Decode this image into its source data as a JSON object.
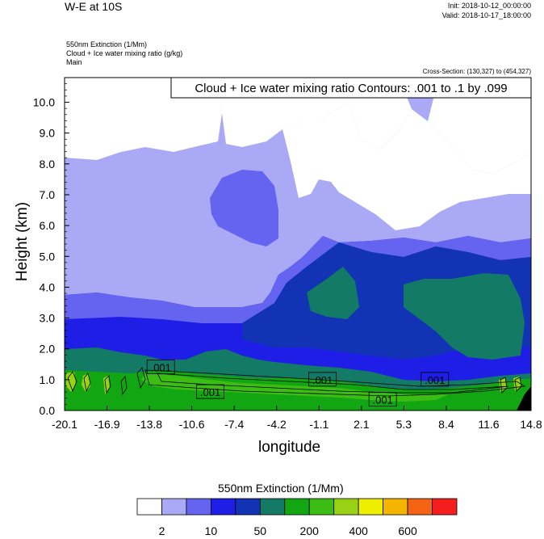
{
  "header": {
    "title": "W-E at 10S",
    "init": "Init: 2018-10-12_00:00:00",
    "valid": "Valid: 2018-10-17_18:00:00",
    "subtitle_lines": [
      "550nm Extinction   (1/Mm)",
      "Cloud + Ice water mixing ratio   (g/kg)",
      "Main"
    ],
    "cross_section": "Cross-Section: (130,327) to (454,327)"
  },
  "chart_data": {
    "type": "heatmap",
    "title": "",
    "contour_label": "Cloud + Ice water mixing ratio Contours: .001 to .1 by .099",
    "xlabel": "longitude",
    "ylabel": "Height (km)",
    "x_ticks": [
      "-20.1",
      "-16.9",
      "-13.8",
      "-10.6",
      "-7.4",
      "-4.2",
      "-1.1",
      "2.1",
      "5.3",
      "8.4",
      "11.6",
      "14.8"
    ],
    "y_ticks": [
      "0.0",
      "1.0",
      "2.0",
      "3.0",
      "4.0",
      "5.0",
      "6.0",
      "7.0",
      "8.0",
      "9.0",
      "10.0"
    ],
    "xlim": [
      -20.1,
      14.8
    ],
    "ylim": [
      0,
      10.8
    ],
    "contour_labels": [
      {
        "text": ".001",
        "x": -12.9,
        "y": 1.4
      },
      {
        "text": ".001",
        "x": -9.2,
        "y": 0.6
      },
      {
        "text": ".001",
        "x": -0.8,
        "y": 1.0
      },
      {
        "text": ".001",
        "x": 3.7,
        "y": 0.35
      },
      {
        "text": ".001",
        "x": 7.6,
        "y": 1.0
      }
    ],
    "colorbar": {
      "title": "550nm Extinction  (1/Mm)",
      "colors": [
        "#ffffff",
        "#a9a9f5",
        "#6464f0",
        "#1e1ee6",
        "#1234b4",
        "#137a66",
        "#12a612",
        "#3cbd14",
        "#99d214",
        "#eeee00",
        "#f5b400",
        "#f56414",
        "#f51e1e"
      ],
      "tick_labels": [
        "2",
        "10",
        "50",
        "200",
        "400",
        "600"
      ]
    }
  }
}
